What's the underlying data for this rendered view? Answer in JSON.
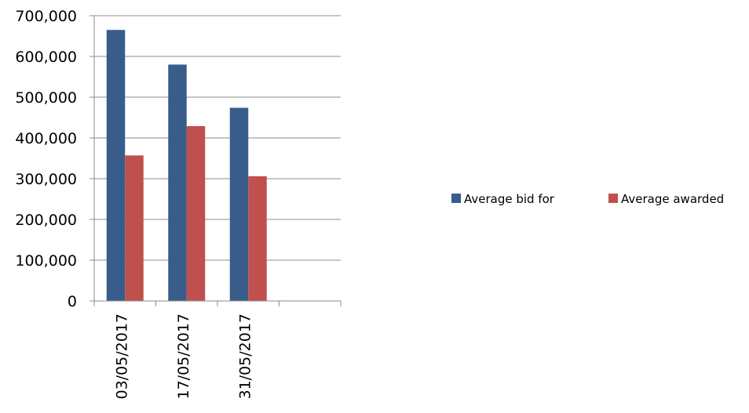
{
  "chart_data": {
    "type": "bar",
    "categories": [
      "03/05/2017",
      "17/05/2017",
      "31/05/2017",
      ""
    ],
    "series": [
      {
        "name": "Average bid for",
        "color": "#385D8A",
        "values": [
          665000,
          580000,
          474000,
          null
        ]
      },
      {
        "name": "Average awarded",
        "color": "#C0504D",
        "values": [
          357000,
          429000,
          306000,
          null
        ]
      }
    ],
    "ylim": [
      0,
      700000
    ],
    "y_ticks": [
      0,
      100000,
      200000,
      300000,
      400000,
      500000,
      600000,
      700000
    ],
    "y_tick_labels": [
      "0",
      "100,000",
      "200,000",
      "300,000",
      "400,000",
      "500,000",
      "600,000",
      "700,000"
    ],
    "grid": true,
    "legend_position": "right",
    "x_label_rotation": "vertical"
  }
}
